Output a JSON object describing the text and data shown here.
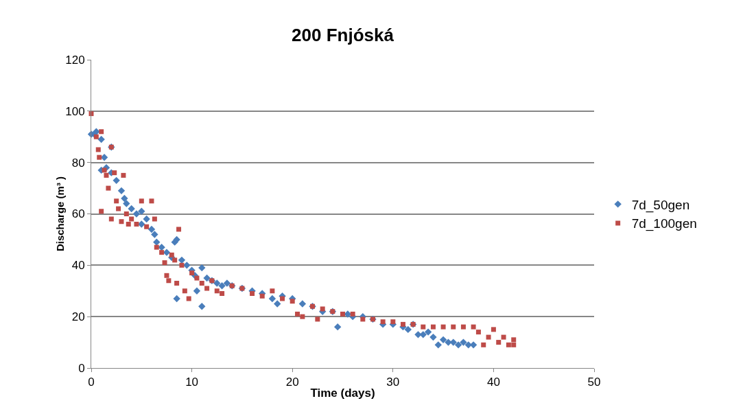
{
  "chart_data": {
    "type": "scatter",
    "title": "200 Fnjóská",
    "xlabel": "Time (days)",
    "ylabel": "Discharge (m³ )",
    "xlim": [
      0,
      50
    ],
    "xticks": [
      0,
      10,
      20,
      30,
      40,
      50
    ],
    "ylim": [
      0,
      120
    ],
    "yticks": [
      0,
      20,
      40,
      60,
      80,
      100,
      120
    ],
    "grid": "y",
    "legend": "right",
    "series": [
      {
        "name": "7d_50gen",
        "color": "#4a7ebb",
        "marker": "diamond",
        "x": [
          0,
          0.3,
          0.5,
          1,
          1,
          1.3,
          1.5,
          2,
          2,
          2.5,
          3,
          3.3,
          3.5,
          4,
          4.5,
          5,
          5,
          5.5,
          6,
          6.3,
          6.5,
          7,
          7.5,
          8,
          8.3,
          8.5,
          8.5,
          9,
          9.5,
          10,
          10.3,
          10.5,
          11,
          11,
          11.5,
          12,
          12.5,
          13,
          13.5,
          14,
          15,
          16,
          17,
          18,
          18.5,
          19,
          20,
          21,
          22,
          23,
          24,
          24.5,
          25.5,
          26,
          27,
          28,
          29,
          30,
          31,
          31.5,
          32,
          32.5,
          33,
          33.5,
          34,
          34.5,
          35,
          35.5,
          36,
          36.5,
          37,
          37.5,
          38
        ],
        "values": [
          91,
          91,
          92,
          89,
          77,
          82,
          78,
          86,
          76,
          73,
          69,
          66,
          64,
          62,
          60,
          61,
          56,
          58,
          54,
          52,
          49,
          47,
          45,
          43,
          49,
          50,
          27,
          42,
          40,
          38,
          36,
          30,
          39,
          24,
          35,
          34,
          33,
          32,
          33,
          32,
          31,
          30,
          29,
          27,
          25,
          28,
          27,
          25,
          24,
          22,
          22,
          16,
          21,
          20,
          20,
          19,
          17,
          17,
          16,
          15,
          17,
          13,
          13,
          14,
          12,
          9,
          11,
          10,
          10,
          9,
          10,
          9,
          9
        ]
      },
      {
        "name": "7d_100gen",
        "color": "#be4b48",
        "marker": "square",
        "x": [
          0,
          0.5,
          0.7,
          0.8,
          1,
          1,
          1.3,
          1.5,
          1.7,
          2,
          2,
          2.3,
          2.5,
          2.7,
          3,
          3.2,
          3.5,
          3.7,
          4,
          4.5,
          5,
          5.5,
          6,
          6.3,
          6.5,
          7,
          7.3,
          7.5,
          7.7,
          8,
          8.3,
          8.5,
          8.7,
          9,
          9.3,
          9.7,
          10,
          10.5,
          11,
          11.5,
          12,
          12.5,
          13,
          14,
          15,
          16,
          17,
          18,
          19,
          20,
          20.5,
          21,
          22,
          22.5,
          23,
          24,
          25,
          26,
          27,
          28,
          29,
          30,
          31,
          32,
          33,
          34,
          35,
          36,
          37,
          38,
          38.5,
          39,
          39.5,
          40,
          40.5,
          41,
          41.5,
          42,
          42
        ],
        "values": [
          99,
          90,
          85,
          82,
          61,
          92,
          77,
          75,
          70,
          86,
          58,
          76,
          65,
          62,
          57,
          75,
          60,
          56,
          58,
          56,
          65,
          55,
          65,
          58,
          47,
          45,
          41,
          36,
          34,
          44,
          42,
          33,
          54,
          40,
          30,
          27,
          37,
          35,
          33,
          31,
          34,
          30,
          29,
          32,
          31,
          29,
          28,
          30,
          27,
          26,
          21,
          20,
          24,
          19,
          23,
          22,
          21,
          21,
          19,
          19,
          18,
          18,
          17,
          17,
          16,
          16,
          16,
          16,
          16,
          16,
          14,
          9,
          12,
          15,
          10,
          12,
          9,
          11,
          9
        ]
      }
    ]
  }
}
